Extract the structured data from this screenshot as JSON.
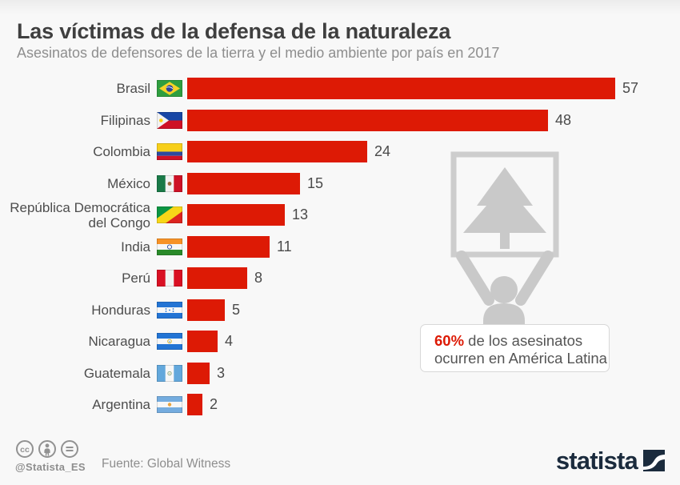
{
  "header": {
    "title": "Las víctimas de la defensa de la naturaleza",
    "subtitle": "Asesinatos de defensores de la tierra y el medio ambiente por país en 2017"
  },
  "chart_data": {
    "type": "bar",
    "orientation": "horizontal",
    "title": "Las víctimas de la defensa de la naturaleza",
    "subtitle": "Asesinatos de defensores de la tierra y el medio ambiente por país en 2017",
    "categories": [
      "Brasil",
      "Filipinas",
      "Colombia",
      "México",
      "República Democrática del Congo",
      "India",
      "Perú",
      "Honduras",
      "Nicaragua",
      "Guatemala",
      "Argentina"
    ],
    "values": [
      57,
      48,
      24,
      15,
      13,
      11,
      8,
      5,
      4,
      3,
      2
    ],
    "flag_icons": [
      "brazil-flag-icon",
      "philippines-flag-icon",
      "colombia-flag-icon",
      "mexico-flag-icon",
      "congo-flag-icon",
      "india-flag-icon",
      "peru-flag-icon",
      "honduras-flag-icon",
      "nicaragua-flag-icon",
      "guatemala-flag-icon",
      "argentina-flag-icon"
    ],
    "bar_color": "#dd1a05",
    "xlim": [
      0,
      57
    ],
    "grid": false,
    "value_labels": true,
    "legend": false
  },
  "callout": {
    "highlight": "60%",
    "line1_rest": "de los asesinatos",
    "line2": "ocurren en América Latina"
  },
  "graphic": {
    "name": "protester-holding-tree-sign",
    "color": "#c9c9c9"
  },
  "footer": {
    "license_icons": [
      "cc-icon",
      "attribution-icon",
      "no-derivatives-icon"
    ],
    "handle": "@Statista_ES",
    "source": "Fuente: Global Witness",
    "brand": "statista"
  },
  "colors": {
    "background": "#f8f8f8",
    "bar_red": "#dd1a05",
    "accent_red": "#dd1a05",
    "brand_navy": "#1b2b3d",
    "graphic_gray": "#c9c9c9",
    "title_gray": "#3f3f3f",
    "subtitle_gray": "#8e8e8e"
  }
}
